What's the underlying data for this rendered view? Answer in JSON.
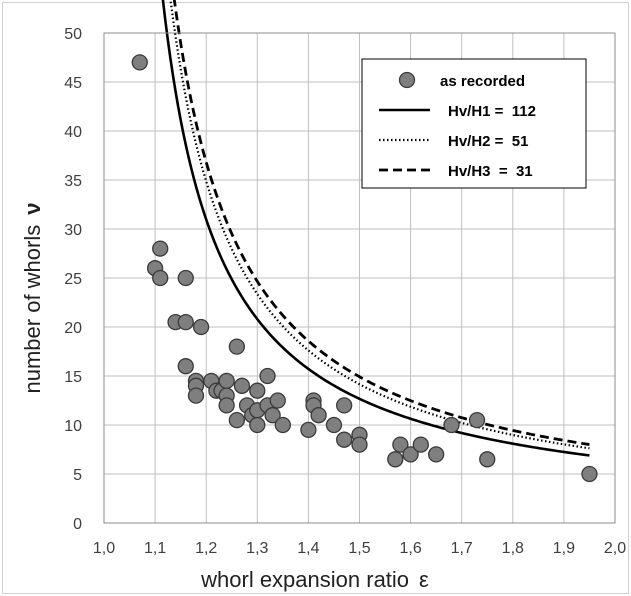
{
  "chart_data": {
    "type": "scatter",
    "title": "",
    "xlabel_main": "whorl expansion ratio",
    "xlabel_symbol": "ε",
    "ylabel_main": "number  of  whorls",
    "ylabel_symbol": "ν",
    "xlim": [
      1.0,
      2.0
    ],
    "ylim": [
      0,
      50
    ],
    "x_ticks": [
      "1,0",
      "1,1",
      "1,2",
      "1,3",
      "1,4",
      "1,5",
      "1,6",
      "1,7",
      "1,8",
      "1,9",
      "2,0"
    ],
    "y_ticks": [
      "0",
      "5",
      "10",
      "15",
      "20",
      "25",
      "30",
      "35",
      "40",
      "45",
      "50"
    ],
    "grid": true,
    "legend_position": "top-right",
    "legend": [
      {
        "label": "as recorded",
        "marker": "circle"
      },
      {
        "label": "Hv/H1 =  112",
        "line": "solid"
      },
      {
        "label": "Hv/H2 =  51",
        "line": "dotted"
      },
      {
        "label": "Hv/H3  =  31",
        "line": "dashed"
      }
    ],
    "points": [
      [
        1.07,
        47
      ],
      [
        1.1,
        26
      ],
      [
        1.11,
        28
      ],
      [
        1.11,
        25
      ],
      [
        1.14,
        20.5
      ],
      [
        1.16,
        25
      ],
      [
        1.16,
        20.5
      ],
      [
        1.16,
        16
      ],
      [
        1.18,
        14.5
      ],
      [
        1.18,
        14
      ],
      [
        1.18,
        13
      ],
      [
        1.19,
        20
      ],
      [
        1.21,
        14.5
      ],
      [
        1.22,
        13.5
      ],
      [
        1.23,
        13.5
      ],
      [
        1.24,
        14.5
      ],
      [
        1.24,
        13
      ],
      [
        1.24,
        12
      ],
      [
        1.26,
        18
      ],
      [
        1.26,
        10.5
      ],
      [
        1.27,
        14
      ],
      [
        1.28,
        12
      ],
      [
        1.29,
        11
      ],
      [
        1.3,
        13.5
      ],
      [
        1.3,
        11.5
      ],
      [
        1.3,
        10
      ],
      [
        1.32,
        15
      ],
      [
        1.32,
        12
      ],
      [
        1.33,
        11
      ],
      [
        1.34,
        12.5
      ],
      [
        1.35,
        10
      ],
      [
        1.4,
        9.5
      ],
      [
        1.41,
        12.5
      ],
      [
        1.41,
        12
      ],
      [
        1.42,
        11
      ],
      [
        1.45,
        10
      ],
      [
        1.47,
        12
      ],
      [
        1.47,
        8.5
      ],
      [
        1.5,
        9
      ],
      [
        1.5,
        8
      ],
      [
        1.57,
        6.5
      ],
      [
        1.58,
        8
      ],
      [
        1.6,
        7
      ],
      [
        1.62,
        8
      ],
      [
        1.65,
        7
      ],
      [
        1.68,
        10
      ],
      [
        1.73,
        10.5
      ],
      [
        1.75,
        6.5
      ],
      [
        1.95,
        5
      ]
    ],
    "series": [
      {
        "name": "Hv/H1 =  112",
        "style": "solid",
        "a": 6.1,
        "b": 0.47,
        "x_from": 1.05,
        "x_to": 1.95
      },
      {
        "name": "Hv/H2 =  51",
        "style": "dotted",
        "a": 6.9,
        "b": 0.36,
        "x_from": 1.05,
        "x_to": 1.95
      },
      {
        "name": "Hv/H3  =  31",
        "style": "dashed",
        "a": 7.3,
        "b": 0.32,
        "x_from": 1.05,
        "x_to": 1.95
      }
    ],
    "colors": {
      "marker_fill": "#7f7f7f",
      "marker_edge": "#3a3a3a",
      "grid": "#bfbfbf",
      "line": "#000000"
    }
  }
}
